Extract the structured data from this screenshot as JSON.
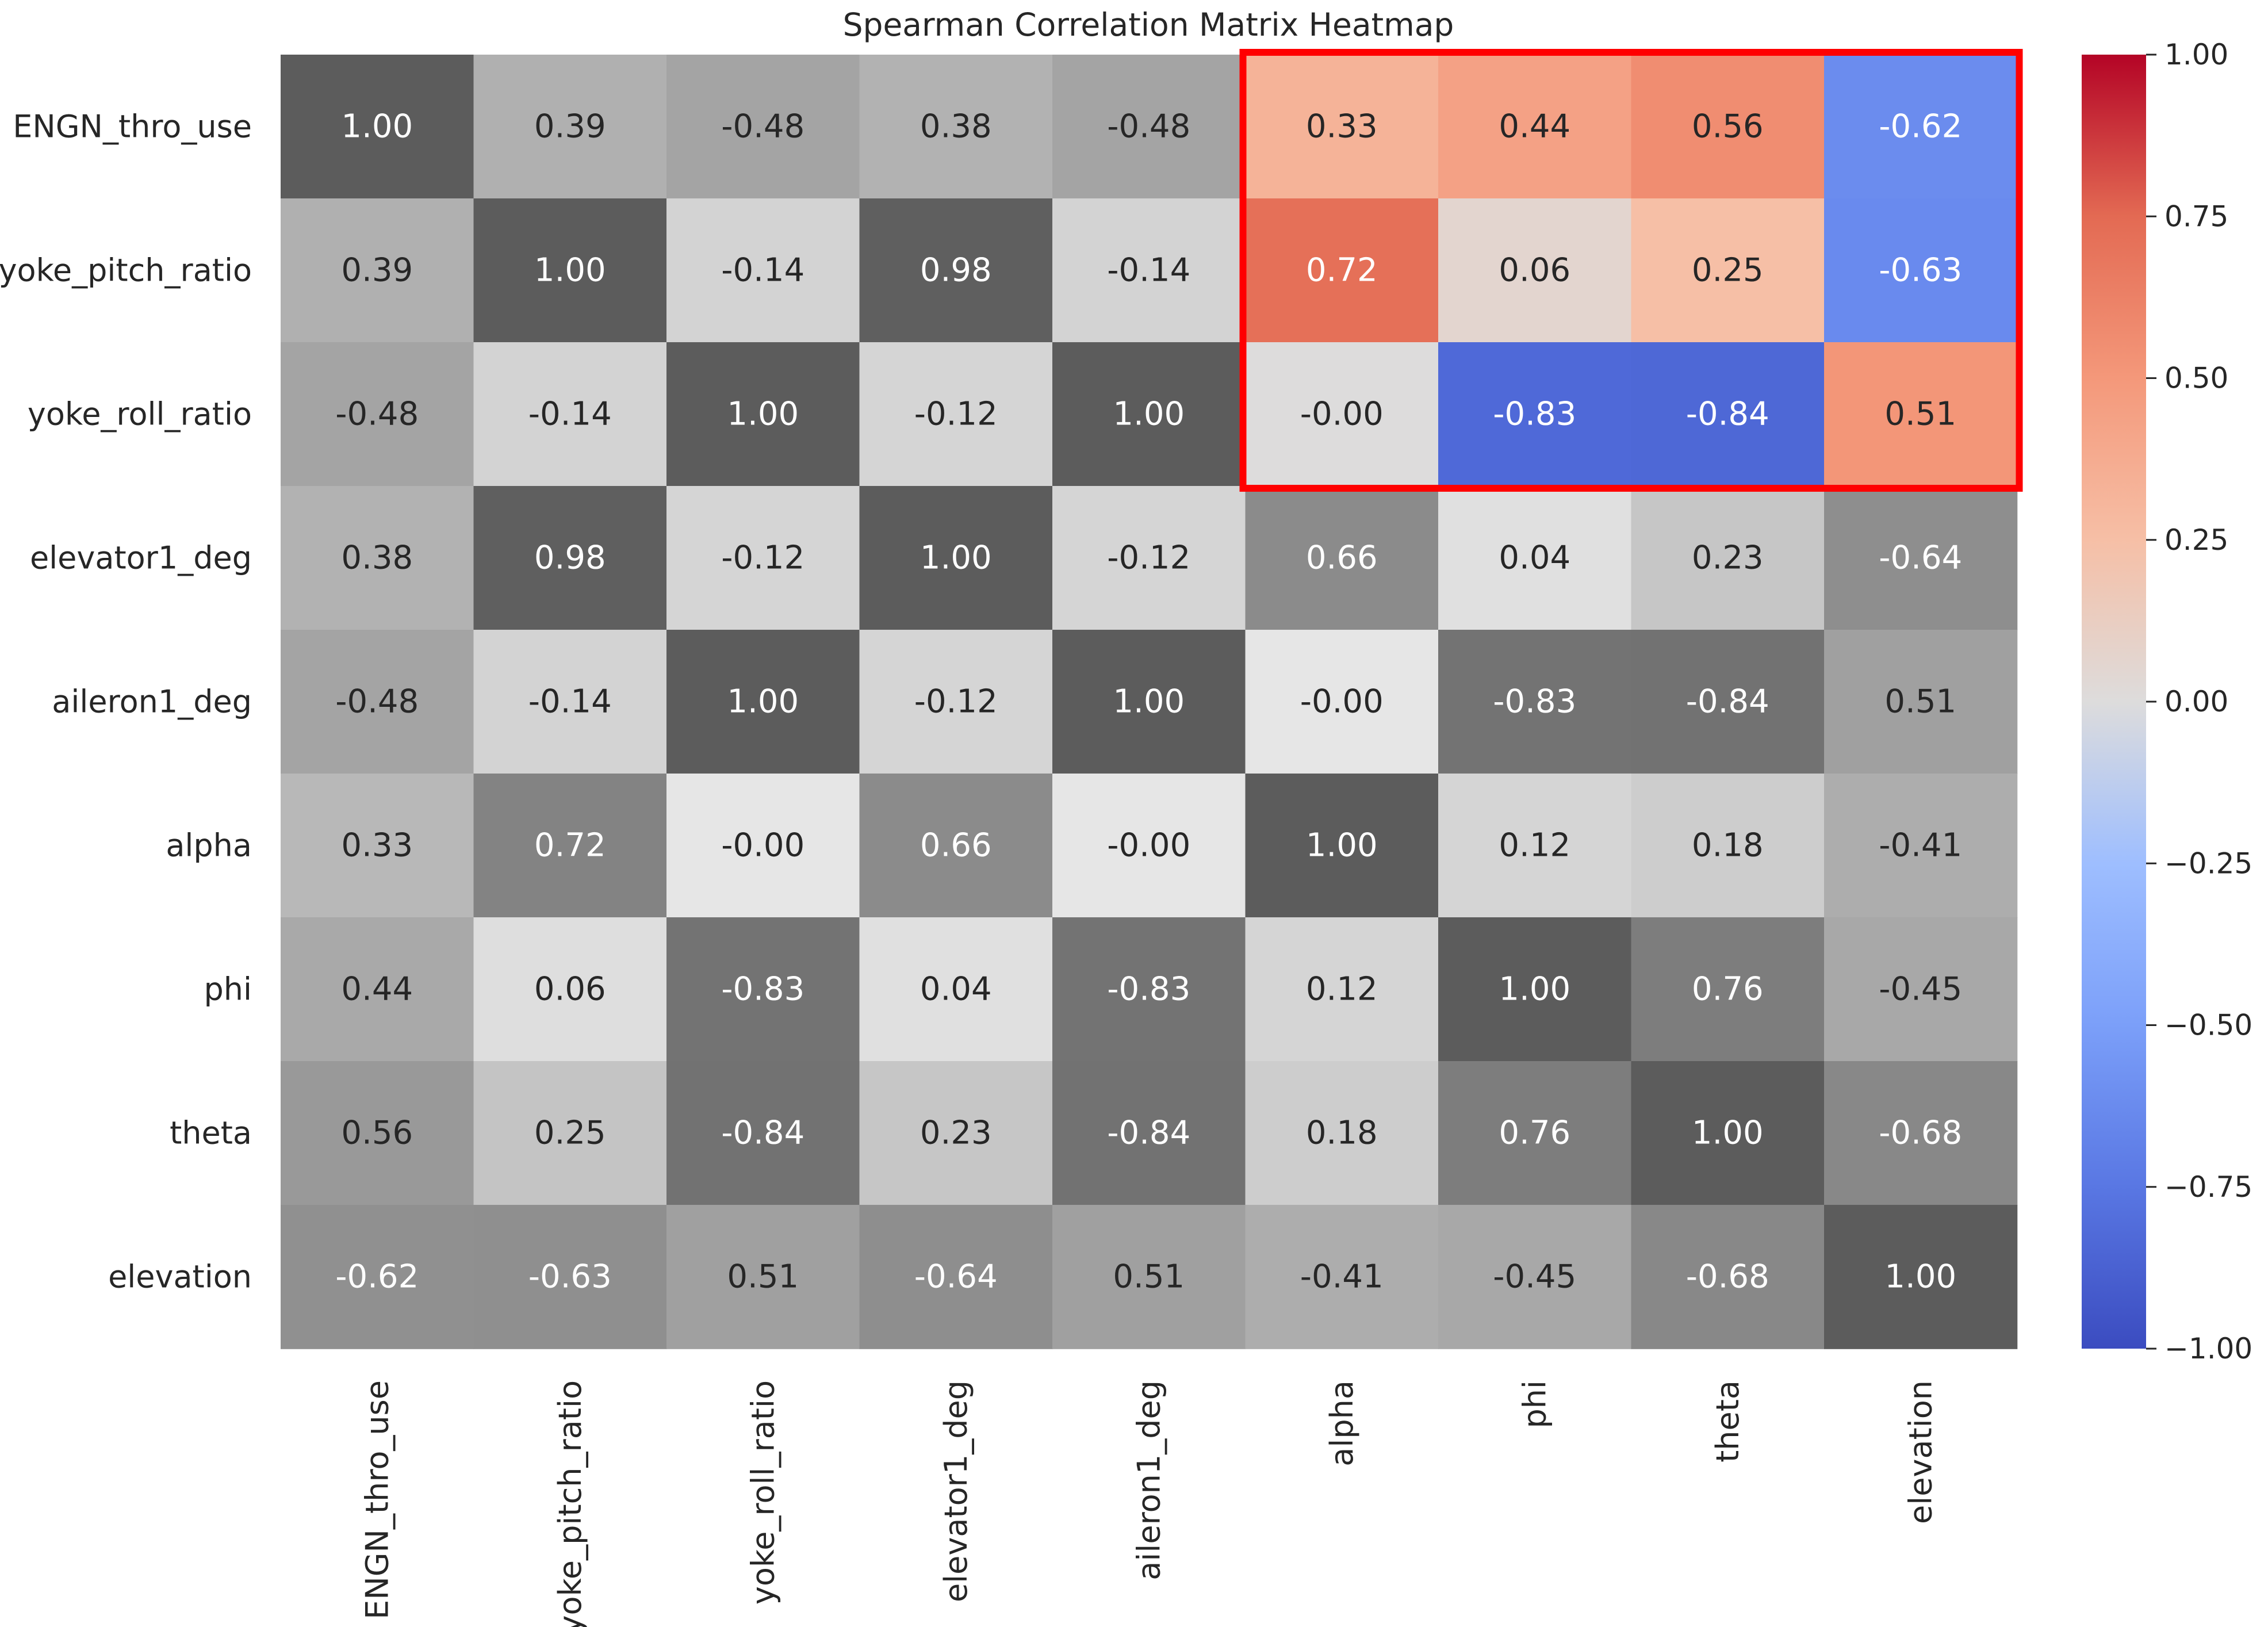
{
  "chart_data": {
    "type": "heatmap",
    "title": "Spearman Correlation Matrix Heatmap",
    "row_labels": [
      "ENGN_thro_use",
      "yoke_pitch_ratio",
      "yoke_roll_ratio",
      "elevator1_deg",
      "aileron1_deg",
      "alpha",
      "phi",
      "theta",
      "elevation"
    ],
    "col_labels": [
      "ENGN_thro_use",
      "yoke_pitch_ratio",
      "yoke_roll_ratio",
      "elevator1_deg",
      "aileron1_deg",
      "alpha",
      "phi",
      "theta",
      "elevation"
    ],
    "cell_labels": [
      [
        "1.00",
        "0.39",
        "-0.48",
        "0.38",
        "-0.48",
        "0.33",
        "0.44",
        "0.56",
        "-0.62"
      ],
      [
        "0.39",
        "1.00",
        "-0.14",
        "0.98",
        "-0.14",
        "0.72",
        "0.06",
        "0.25",
        "-0.63"
      ],
      [
        "-0.48",
        "-0.14",
        "1.00",
        "-0.12",
        "1.00",
        "-0.00",
        "-0.83",
        "-0.84",
        "0.51"
      ],
      [
        "0.38",
        "0.98",
        "-0.12",
        "1.00",
        "-0.12",
        "0.66",
        "0.04",
        "0.23",
        "-0.64"
      ],
      [
        "-0.48",
        "-0.14",
        "1.00",
        "-0.12",
        "1.00",
        "-0.00",
        "-0.83",
        "-0.84",
        "0.51"
      ],
      [
        "0.33",
        "0.72",
        "-0.00",
        "0.66",
        "-0.00",
        "1.00",
        "0.12",
        "0.18",
        "-0.41"
      ],
      [
        "0.44",
        "0.06",
        "-0.83",
        "0.04",
        "-0.83",
        "0.12",
        "1.00",
        "0.76",
        "-0.45"
      ],
      [
        "0.56",
        "0.25",
        "-0.84",
        "0.23",
        "-0.84",
        "0.18",
        "0.76",
        "1.00",
        "-0.68"
      ],
      [
        "-0.62",
        "-0.63",
        "0.51",
        "-0.64",
        "0.51",
        "-0.41",
        "-0.45",
        "-0.68",
        "1.00"
      ]
    ],
    "highlight": {
      "rows": [
        0,
        2
      ],
      "cols": [
        5,
        8
      ],
      "color": "#ff0000"
    },
    "colorbar": {
      "colormap": "coolwarm",
      "vmin": -1.0,
      "vmax": 1.0,
      "ticks": [
        1.0,
        0.75,
        0.5,
        0.25,
        0.0,
        -0.25,
        -0.5,
        -0.75,
        -1.0
      ],
      "tick_labels": [
        "1.00",
        "0.75",
        "0.50",
        "0.25",
        "0.00",
        "−0.25",
        "−0.50",
        "−0.75",
        "−1.00"
      ]
    },
    "colors": {
      "gray_dark": "#5c5c5c",
      "gray_light": "#e6e6e6",
      "text_dark": "#262626",
      "text_light": "#ffffff"
    },
    "xlabel": "",
    "ylabel": ""
  }
}
